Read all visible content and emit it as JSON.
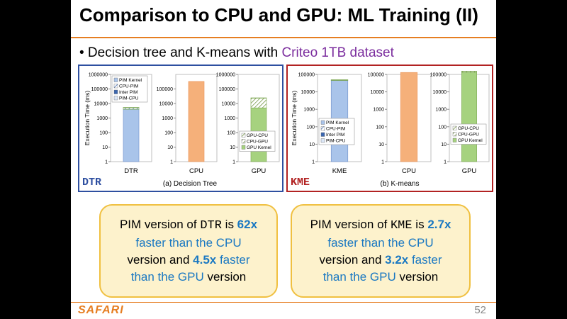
{
  "slide": {
    "title": "Comparison to CPU and GPU: ML Training (II)",
    "bullet_prefix": "• Decision tree and K-means with ",
    "bullet_highlight": "Criteo 1TB dataset",
    "brand": "SAFARI",
    "page_number": "52",
    "colors": {
      "accent": "#e67e22",
      "dtr_box": "#2e4fa0",
      "kme_box": "#b22222",
      "highlight": "#7b2d9e",
      "callout_text": "#1a78c2"
    }
  },
  "groups": {
    "dtr": {
      "tag": "DTR",
      "caption": "(a) Decision Tree"
    },
    "kme": {
      "tag": "KME",
      "caption": "(b) K-means"
    }
  },
  "callouts": {
    "dtr": {
      "p1": "PIM version of ",
      "code": "DTR",
      "p2": " is ",
      "speedup_cpu": "62x",
      "l2": "faster than the CPU",
      "l3a": "version and ",
      "speedup_gpu": "4.5x",
      "l3b": " faster",
      "l4a": "than the GPU",
      "l4b": " version"
    },
    "kme": {
      "p1": "PIM version of ",
      "code": "KME",
      "p2": " is ",
      "speedup_cpu": "2.7x",
      "l2": "faster than the CPU",
      "l3a": "version and ",
      "speedup_gpu": "3.2x",
      "l3b": " faster",
      "l4a": "than the GPU",
      "l4b": " version"
    }
  },
  "chart_data": [
    {
      "type": "bar",
      "yscale": "log",
      "ylabel": "Execution Time (ms)",
      "category": "DTR",
      "ylim": [
        1,
        1000000
      ],
      "yticks": [
        "1",
        "10",
        "100",
        "1000",
        "10000",
        "100000",
        "1000000"
      ],
      "legend": [
        "PIM Kernel",
        "CPU-PIM",
        "Inter PIM",
        "PIM-CPU"
      ],
      "segments": [
        {
          "name": "PIM Kernel",
          "value": 4000,
          "color": "#a9c4ea"
        },
        {
          "name": "CPU-PIM",
          "value": 1200,
          "color": "#a9c4ea"
        },
        {
          "name": "Inter PIM",
          "value": 100,
          "color": "#3a66b0"
        },
        {
          "name": "PIM-CPU",
          "value": 50,
          "color": "#dbe7f7"
        }
      ],
      "total": 5400
    },
    {
      "type": "bar",
      "yscale": "log",
      "category": "CPU",
      "ylim": [
        1,
        1000000
      ],
      "yticks": [
        "1",
        "10",
        "100",
        "1000",
        "10000",
        "100000"
      ],
      "segments": [
        {
          "name": "CPU",
          "value": 330000,
          "color": "#f5b07a"
        }
      ],
      "total": 330000
    },
    {
      "type": "bar",
      "yscale": "log",
      "category": "GPU",
      "ylim": [
        1,
        1000000
      ],
      "yticks": [
        "1",
        "10",
        "100",
        "1000",
        "10000",
        "100000",
        "1000000"
      ],
      "legend": [
        "GPU-CPU",
        "CPU-GPU",
        "GPU Kernel"
      ],
      "segments": [
        {
          "name": "GPU Kernel",
          "value": 5000,
          "color": "#a6d27f"
        },
        {
          "name": "CPU-GPU",
          "value": 19000,
          "color": "#c8e5a8"
        },
        {
          "name": "GPU-CPU",
          "value": 500,
          "color": "#c8e5a8"
        }
      ],
      "total": 24500
    },
    {
      "type": "bar",
      "yscale": "log",
      "ylabel": "Execution Time (ms)",
      "category": "KME",
      "ylim": [
        1,
        100000
      ],
      "yticks": [
        "1",
        "10",
        "100",
        "1000",
        "10000",
        "100000"
      ],
      "legend": [
        "PIM Kernel",
        "CPU-PIM",
        "Inter PIM",
        "PIM-CPU"
      ],
      "segments": [
        {
          "name": "PIM Kernel",
          "value": 45000,
          "color": "#a9c4ea"
        },
        {
          "name": "CPU-PIM",
          "value": 3000,
          "color": "#a9c4ea"
        },
        {
          "name": "Inter PIM",
          "value": 1000,
          "color": "#3a66b0"
        },
        {
          "name": "PIM-CPU",
          "value": 500,
          "color": "#dbe7f7"
        }
      ],
      "total": 49500
    },
    {
      "type": "bar",
      "yscale": "log",
      "category": "CPU",
      "ylim": [
        1,
        100000
      ],
      "yticks": [
        "1",
        "10",
        "100",
        "1000",
        "10000",
        "100000"
      ],
      "segments": [
        {
          "name": "CPU",
          "value": 130000,
          "color": "#f5b07a"
        }
      ],
      "total": 130000
    },
    {
      "type": "bar",
      "yscale": "log",
      "category": "GPU",
      "ylim": [
        1,
        100000
      ],
      "yticks": [
        "1",
        "10",
        "100",
        "1000",
        "10000",
        "100000"
      ],
      "legend": [
        "GPU-CPU",
        "CPU-GPU",
        "GPU Kernel"
      ],
      "segments": [
        {
          "name": "GPU Kernel",
          "value": 130000,
          "color": "#a6d27f"
        },
        {
          "name": "CPU-GPU",
          "value": 20000,
          "color": "#c8e5a8"
        },
        {
          "name": "GPU-CPU",
          "value": 5000,
          "color": "#c8e5a8"
        }
      ],
      "total": 155000
    }
  ]
}
